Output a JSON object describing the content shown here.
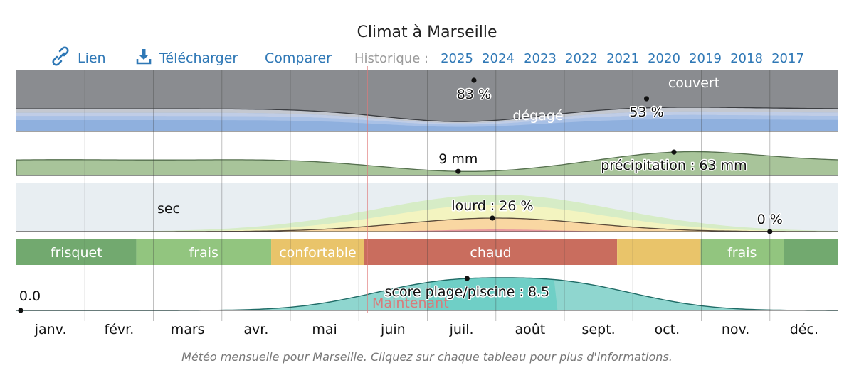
{
  "title": "Climat à Marseille",
  "toolbar": {
    "link_label": "Lien",
    "download_label": "Télécharger",
    "compare_label": "Comparer",
    "history_label": "Historique :",
    "years": [
      "2025",
      "2024",
      "2023",
      "2022",
      "2021",
      "2020",
      "2019",
      "2018",
      "2017"
    ]
  },
  "caption": "Météo mensuelle pour Marseille. Cliquez sur chaque tableau pour plus d'informations.",
  "now_label": "Maintenant",
  "colors": {
    "overcast": "#8a8c90",
    "clear": "#8fb0de",
    "precip": "#a8c49a",
    "muggy": "#ffd79a",
    "beach": "#8fd6cf",
    "now_line": "#e07a7a",
    "link": "#2f78b6"
  },
  "chart_data": {
    "type": "area",
    "months": [
      "janv.",
      "févr.",
      "mars",
      "avr.",
      "mai",
      "juin",
      "juil.",
      "août",
      "sept.",
      "oct.",
      "nov.",
      "déc."
    ],
    "clouds": {
      "label_top": "couvert",
      "label_bottom": "dégagé",
      "annotations": [
        {
          "month": "juil.",
          "value": 83,
          "label": "83 %"
        },
        {
          "month": "oct.",
          "value": 53,
          "label": "53 %"
        }
      ]
    },
    "precipitation": {
      "annotations": [
        {
          "month": "juil.",
          "value": 9,
          "label": "9 mm"
        },
        {
          "month": "oct.",
          "value": 63,
          "label": "précipitation : 63 mm"
        }
      ]
    },
    "humidity": {
      "label_dry": "sec",
      "annotations": [
        {
          "month": "août",
          "value": 26,
          "label": "lourd : 26 %"
        },
        {
          "month": "déc.",
          "value": 0,
          "label": "0 %"
        }
      ]
    },
    "temperature_bands": [
      {
        "label": "frisquet",
        "start": 0.0,
        "end": 1.75,
        "color": "#72a96f"
      },
      {
        "label": "frais",
        "start": 1.75,
        "end": 3.72,
        "color": "#92c57f"
      },
      {
        "label": "confortable",
        "start": 3.72,
        "end": 5.08,
        "color": "#e9c46a"
      },
      {
        "label": "chaud",
        "start": 5.08,
        "end": 8.77,
        "color": "#c96d5e"
      },
      {
        "label": "",
        "start": 8.77,
        "end": 9.99,
        "color": "#e9c46a"
      },
      {
        "label": "frais",
        "start": 9.99,
        "end": 11.2,
        "color": "#92c57f"
      },
      {
        "label": "",
        "start": 11.2,
        "end": 12.0,
        "color": "#72a96f"
      }
    ],
    "beach_score": {
      "annotations": [
        {
          "month": "janv.",
          "value": 0.0,
          "label": "0.0"
        },
        {
          "month": "août",
          "value": 8.5,
          "label": "score plage/piscine : 8.5"
        }
      ]
    }
  }
}
